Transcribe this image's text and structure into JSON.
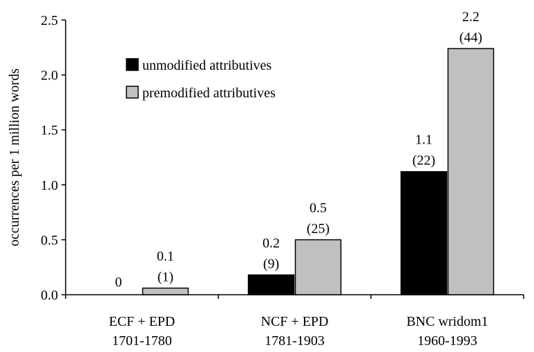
{
  "chart_data": {
    "type": "bar",
    "title": "",
    "ylabel": "occurrences per 1 million words",
    "xlabel": "",
    "ylim": [
      0,
      2.5
    ],
    "yticks": [
      "0.0",
      "0.5",
      "1.0",
      "1.5",
      "2.0",
      "2.5"
    ],
    "grid": false,
    "legend_position": "top-left",
    "categories": [
      {
        "line1": "ECF + EPD",
        "line2": "1701-1780"
      },
      {
        "line1": "NCF + EPD",
        "line2": "1781-1903"
      },
      {
        "line1": "BNC wridom1",
        "line2": "1960-1993"
      }
    ],
    "series": [
      {
        "name": "unmodified attributives",
        "color": "#000000",
        "values": [
          0,
          0.18,
          1.12
        ],
        "labels": [
          {
            "value": "0",
            "count": ""
          },
          {
            "value": "0.2",
            "count": "(9)"
          },
          {
            "value": "1.1",
            "count": "(22)"
          }
        ]
      },
      {
        "name": "premodified attributives",
        "color": "#c0c0c0",
        "values": [
          0.06,
          0.5,
          2.24
        ],
        "labels": [
          {
            "value": "0.1",
            "count": "(1)"
          },
          {
            "value": "0.5",
            "count": "(25)"
          },
          {
            "value": "2.2",
            "count": "(44)"
          }
        ]
      }
    ]
  }
}
